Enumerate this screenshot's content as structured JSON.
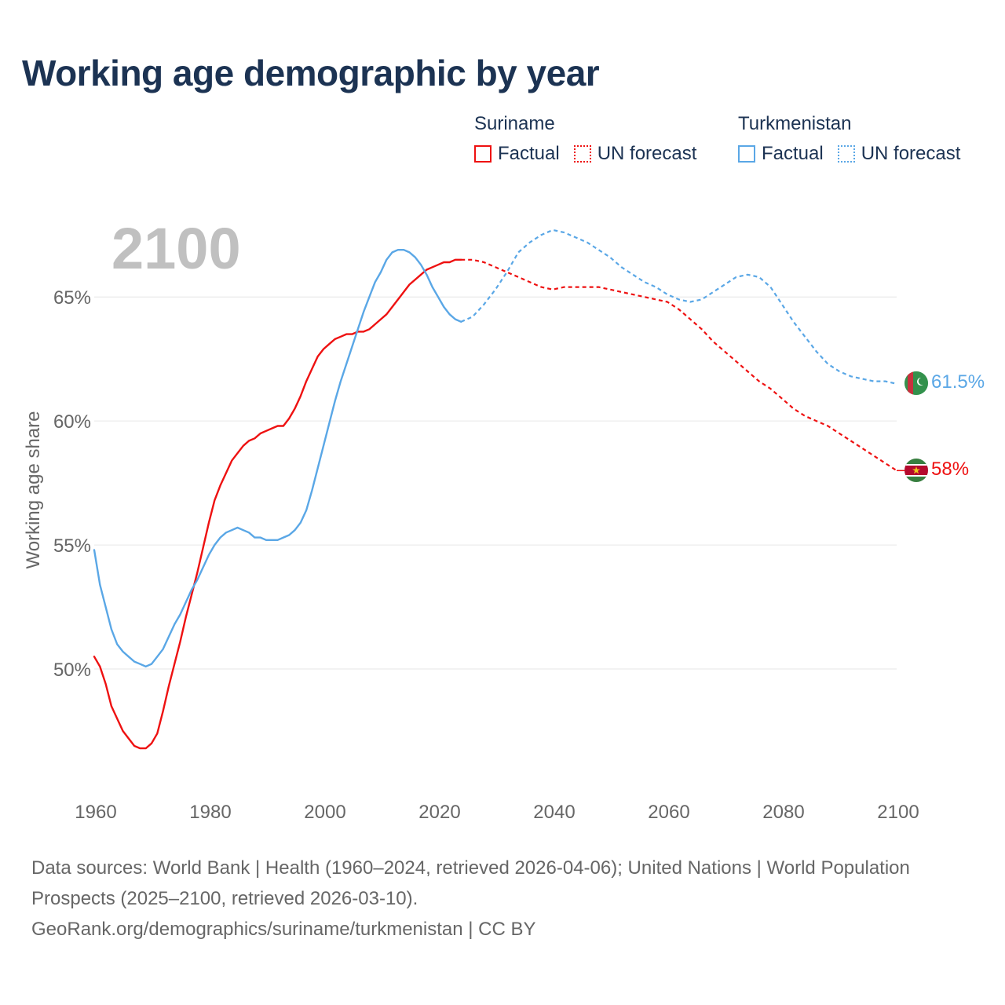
{
  "title": "Working age demographic by year",
  "colors": {
    "suriname": "#ee1111",
    "turkmenistan": "#5aa7e6",
    "grid": "#e6e6e6",
    "axis_text": "#666666",
    "year_watermark": "#c0c0c0"
  },
  "legend": {
    "groups": [
      {
        "name": "Suriname",
        "factual_label": "Factual",
        "forecast_label": "UN forecast"
      },
      {
        "name": "Turkmenistan",
        "factual_label": "Factual",
        "forecast_label": "UN forecast"
      }
    ]
  },
  "chart_data": {
    "type": "line",
    "current_year_label": "2100",
    "ylabel": "Working age share",
    "xlabel": "",
    "xlim": [
      1960,
      2100
    ],
    "ylim": [
      45.0,
      70.8
    ],
    "x_ticks": [
      1960,
      1980,
      2000,
      2020,
      2040,
      2060,
      2080,
      2100
    ],
    "x_tick_labels": [
      "1960",
      "1980",
      "2000",
      "2020",
      "2040",
      "2060",
      "2080",
      "2100"
    ],
    "y_ticks": [
      50,
      55,
      60,
      65
    ],
    "y_tick_labels": [
      "50%",
      "55%",
      "60%",
      "65%"
    ],
    "forecast_start_year": 2024,
    "series": [
      {
        "name": "Suriname",
        "end_label": "58%",
        "points": [
          [
            1960,
            50.5
          ],
          [
            1961,
            50.1
          ],
          [
            1962,
            49.4
          ],
          [
            1963,
            48.5
          ],
          [
            1964,
            48.0
          ],
          [
            1965,
            47.5
          ],
          [
            1966,
            47.2
          ],
          [
            1967,
            46.9
          ],
          [
            1968,
            46.8
          ],
          [
            1969,
            46.8
          ],
          [
            1970,
            47.0
          ],
          [
            1971,
            47.4
          ],
          [
            1972,
            48.3
          ],
          [
            1973,
            49.3
          ],
          [
            1974,
            50.2
          ],
          [
            1975,
            51.1
          ],
          [
            1976,
            52.1
          ],
          [
            1977,
            53.0
          ],
          [
            1978,
            53.9
          ],
          [
            1979,
            54.9
          ],
          [
            1980,
            55.9
          ],
          [
            1981,
            56.8
          ],
          [
            1982,
            57.4
          ],
          [
            1983,
            57.9
          ],
          [
            1984,
            58.4
          ],
          [
            1985,
            58.7
          ],
          [
            1986,
            59.0
          ],
          [
            1987,
            59.2
          ],
          [
            1988,
            59.3
          ],
          [
            1989,
            59.5
          ],
          [
            1990,
            59.6
          ],
          [
            1991,
            59.7
          ],
          [
            1992,
            59.8
          ],
          [
            1993,
            59.8
          ],
          [
            1994,
            60.1
          ],
          [
            1995,
            60.5
          ],
          [
            1996,
            61.0
          ],
          [
            1997,
            61.6
          ],
          [
            1998,
            62.1
          ],
          [
            1999,
            62.6
          ],
          [
            2000,
            62.9
          ],
          [
            2001,
            63.1
          ],
          [
            2002,
            63.3
          ],
          [
            2003,
            63.4
          ],
          [
            2004,
            63.5
          ],
          [
            2005,
            63.5
          ],
          [
            2006,
            63.6
          ],
          [
            2007,
            63.6
          ],
          [
            2008,
            63.7
          ],
          [
            2009,
            63.9
          ],
          [
            2010,
            64.1
          ],
          [
            2011,
            64.3
          ],
          [
            2012,
            64.6
          ],
          [
            2013,
            64.9
          ],
          [
            2014,
            65.2
          ],
          [
            2015,
            65.5
          ],
          [
            2016,
            65.7
          ],
          [
            2017,
            65.9
          ],
          [
            2018,
            66.1
          ],
          [
            2019,
            66.2
          ],
          [
            2020,
            66.3
          ],
          [
            2021,
            66.4
          ],
          [
            2022,
            66.4
          ],
          [
            2023,
            66.5
          ],
          [
            2024,
            66.5
          ],
          [
            2026,
            66.5
          ],
          [
            2028,
            66.4
          ],
          [
            2030,
            66.2
          ],
          [
            2032,
            66.0
          ],
          [
            2034,
            65.8
          ],
          [
            2036,
            65.6
          ],
          [
            2038,
            65.4
          ],
          [
            2040,
            65.3
          ],
          [
            2042,
            65.4
          ],
          [
            2044,
            65.4
          ],
          [
            2046,
            65.4
          ],
          [
            2048,
            65.4
          ],
          [
            2050,
            65.3
          ],
          [
            2052,
            65.2
          ],
          [
            2054,
            65.1
          ],
          [
            2056,
            65.0
          ],
          [
            2058,
            64.9
          ],
          [
            2060,
            64.8
          ],
          [
            2062,
            64.5
          ],
          [
            2064,
            64.1
          ],
          [
            2066,
            63.7
          ],
          [
            2068,
            63.2
          ],
          [
            2070,
            62.8
          ],
          [
            2072,
            62.4
          ],
          [
            2074,
            62.0
          ],
          [
            2076,
            61.6
          ],
          [
            2078,
            61.3
          ],
          [
            2080,
            60.9
          ],
          [
            2082,
            60.5
          ],
          [
            2084,
            60.2
          ],
          [
            2086,
            60.0
          ],
          [
            2088,
            59.8
          ],
          [
            2090,
            59.5
          ],
          [
            2092,
            59.2
          ],
          [
            2094,
            58.9
          ],
          [
            2096,
            58.6
          ],
          [
            2098,
            58.3
          ],
          [
            2100,
            58.0
          ]
        ]
      },
      {
        "name": "Turkmenistan",
        "end_label": "61.5%",
        "points": [
          [
            1960,
            54.8
          ],
          [
            1961,
            53.4
          ],
          [
            1962,
            52.5
          ],
          [
            1963,
            51.6
          ],
          [
            1964,
            51.0
          ],
          [
            1965,
            50.7
          ],
          [
            1966,
            50.5
          ],
          [
            1967,
            50.3
          ],
          [
            1968,
            50.2
          ],
          [
            1969,
            50.1
          ],
          [
            1970,
            50.2
          ],
          [
            1971,
            50.5
          ],
          [
            1972,
            50.8
          ],
          [
            1973,
            51.3
          ],
          [
            1974,
            51.8
          ],
          [
            1975,
            52.2
          ],
          [
            1976,
            52.7
          ],
          [
            1977,
            53.2
          ],
          [
            1978,
            53.6
          ],
          [
            1979,
            54.1
          ],
          [
            1980,
            54.6
          ],
          [
            1981,
            55.0
          ],
          [
            1982,
            55.3
          ],
          [
            1983,
            55.5
          ],
          [
            1984,
            55.6
          ],
          [
            1985,
            55.7
          ],
          [
            1986,
            55.6
          ],
          [
            1987,
            55.5
          ],
          [
            1988,
            55.3
          ],
          [
            1989,
            55.3
          ],
          [
            1990,
            55.2
          ],
          [
            1991,
            55.2
          ],
          [
            1992,
            55.2
          ],
          [
            1993,
            55.3
          ],
          [
            1994,
            55.4
          ],
          [
            1995,
            55.6
          ],
          [
            1996,
            55.9
          ],
          [
            1997,
            56.4
          ],
          [
            1998,
            57.2
          ],
          [
            1999,
            58.1
          ],
          [
            2000,
            59.0
          ],
          [
            2001,
            59.9
          ],
          [
            2002,
            60.8
          ],
          [
            2003,
            61.6
          ],
          [
            2004,
            62.3
          ],
          [
            2005,
            63.0
          ],
          [
            2006,
            63.7
          ],
          [
            2007,
            64.4
          ],
          [
            2008,
            65.0
          ],
          [
            2009,
            65.6
          ],
          [
            2010,
            66.0
          ],
          [
            2011,
            66.5
          ],
          [
            2012,
            66.8
          ],
          [
            2013,
            66.9
          ],
          [
            2014,
            66.9
          ],
          [
            2015,
            66.8
          ],
          [
            2016,
            66.6
          ],
          [
            2017,
            66.3
          ],
          [
            2018,
            65.9
          ],
          [
            2019,
            65.4
          ],
          [
            2020,
            65.0
          ],
          [
            2021,
            64.6
          ],
          [
            2022,
            64.3
          ],
          [
            2023,
            64.1
          ],
          [
            2024,
            64.0
          ],
          [
            2026,
            64.2
          ],
          [
            2028,
            64.7
          ],
          [
            2030,
            65.3
          ],
          [
            2032,
            66.0
          ],
          [
            2034,
            66.8
          ],
          [
            2036,
            67.2
          ],
          [
            2038,
            67.5
          ],
          [
            2040,
            67.7
          ],
          [
            2042,
            67.6
          ],
          [
            2044,
            67.4
          ],
          [
            2046,
            67.2
          ],
          [
            2048,
            66.9
          ],
          [
            2050,
            66.6
          ],
          [
            2052,
            66.2
          ],
          [
            2054,
            65.9
          ],
          [
            2056,
            65.6
          ],
          [
            2058,
            65.4
          ],
          [
            2060,
            65.1
          ],
          [
            2062,
            64.9
          ],
          [
            2064,
            64.8
          ],
          [
            2066,
            64.9
          ],
          [
            2068,
            65.2
          ],
          [
            2070,
            65.5
          ],
          [
            2072,
            65.8
          ],
          [
            2074,
            65.9
          ],
          [
            2076,
            65.8
          ],
          [
            2078,
            65.4
          ],
          [
            2080,
            64.7
          ],
          [
            2082,
            64.0
          ],
          [
            2084,
            63.4
          ],
          [
            2086,
            62.8
          ],
          [
            2088,
            62.3
          ],
          [
            2090,
            62.0
          ],
          [
            2092,
            61.8
          ],
          [
            2094,
            61.7
          ],
          [
            2096,
            61.6
          ],
          [
            2098,
            61.6
          ],
          [
            2100,
            61.5
          ]
        ]
      }
    ]
  },
  "footer": {
    "sources": "Data sources: World Bank | Health (1960–2024, retrieved 2026-04-06); United Nations | World Population Prospects (2025–2100, retrieved 2026-03-10).",
    "attribution": "GeoRank.org/demographics/suriname/turkmenistan | CC BY"
  }
}
